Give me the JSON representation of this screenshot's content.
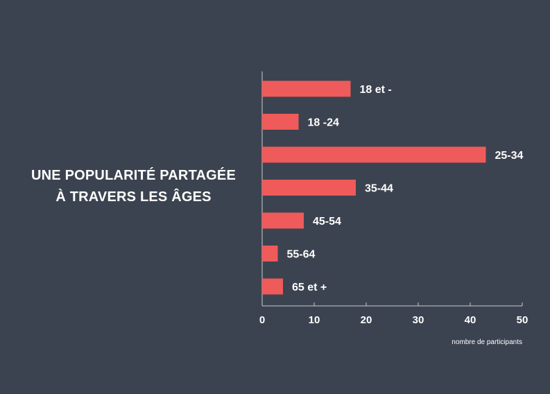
{
  "title_lines": [
    "UNE POPULARITÉ PARTAGÉE",
    "À TRAVERS LES ÂGES"
  ],
  "chart_data": {
    "type": "bar",
    "orientation": "horizontal",
    "categories": [
      "18 et -",
      "18 -24",
      "25-34",
      "35-44",
      "45-54",
      "55-64",
      "65 et +"
    ],
    "values": [
      17,
      7,
      43,
      18,
      8,
      3,
      4
    ],
    "xlabel": "nombre de participants",
    "ylabel": "",
    "xlim": [
      0,
      50
    ],
    "xticks": [
      "0",
      "10",
      "20",
      "30",
      "40",
      "50"
    ],
    "grid": false,
    "legend": "none",
    "colors": {
      "bar": "#ef5a5a",
      "text": "#ffffff",
      "axis": "#c9ccd1",
      "background": "#3c4350"
    }
  }
}
